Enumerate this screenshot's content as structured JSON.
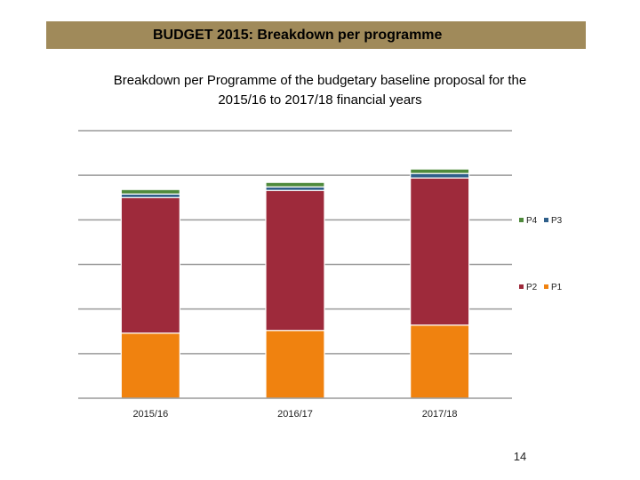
{
  "banner": {
    "title": "BUDGET 2015: Breakdown per programme"
  },
  "slide": {
    "number": "14"
  },
  "chart_data": {
    "type": "bar",
    "stacked": true,
    "title_lines": [
      "Breakdown per Programme of the budgetary baseline proposal for the",
      "2015/16  to 2017/18 financial years"
    ],
    "categories": [
      "2015/16",
      "2016/17",
      "2017/18"
    ],
    "series": [
      {
        "name": "P1",
        "color": "#f0820f",
        "values": [
          1.46,
          1.52,
          1.64
        ]
      },
      {
        "name": "P2",
        "color": "#9e2a3b",
        "values": [
          3.04,
          3.14,
          3.3
        ]
      },
      {
        "name": "P3",
        "color": "#2f5f8a",
        "values": [
          0.08,
          0.08,
          0.1
        ]
      },
      {
        "name": "P4",
        "color": "#4f8a3c",
        "values": [
          0.1,
          0.1,
          0.1
        ]
      }
    ],
    "legend_order": [
      [
        "P4",
        "P3"
      ],
      [
        "P2",
        "P1"
      ]
    ],
    "ylim": [
      0,
      6
    ],
    "gridlines": 6,
    "xlabel": "",
    "ylabel": "",
    "legend_position": "right"
  }
}
